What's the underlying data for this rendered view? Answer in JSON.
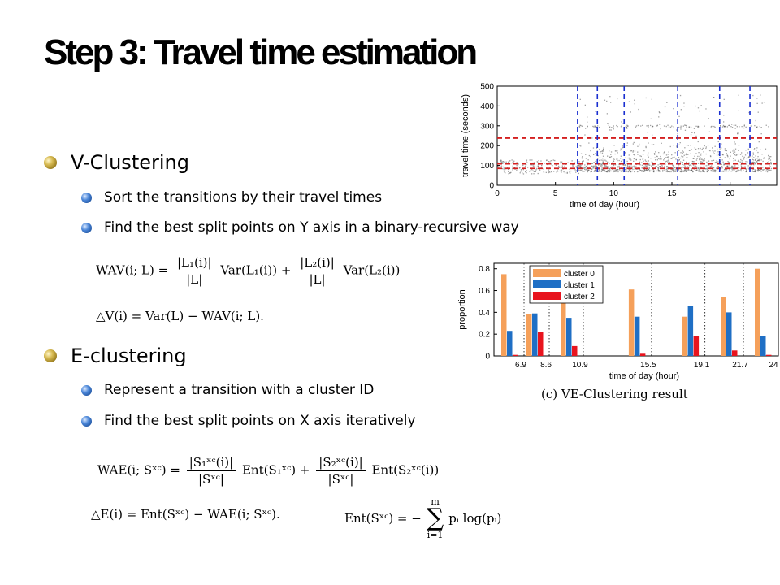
{
  "slide": {
    "title": "Step 3: Travel time estimation",
    "v_clustering": {
      "heading": "V-Clustering",
      "items": [
        "Sort the transitions by their travel times",
        "Find the best split points  on Y axis in a binary-recursive way"
      ]
    },
    "e_clustering": {
      "heading": "E-clustering",
      "items": [
        "Represent a transition with a cluster ID",
        "Find the best split points on X axis iteratively"
      ]
    },
    "formulas": {
      "wav_lhs": "WAV(i; L) =",
      "wav_frac1_num": "|L₁(i)|",
      "wav_frac1_den": "|L|",
      "wav_term1": "Var(L₁(i)) +",
      "wav_frac2_num": "|L₂(i)|",
      "wav_frac2_den": "|L|",
      "wav_term2": "Var(L₂(i))",
      "delta_v": "△V(i) = Var(L) − WAV(i; L).",
      "wae_lhs": "WAE(i; Sˣᶜ) =",
      "wae_frac1_num": "|S₁ˣᶜ(i)|",
      "wae_frac1_den": "|Sˣᶜ|",
      "wae_term1": "Ent(S₁ˣᶜ) +",
      "wae_frac2_num": "|S₂ˣᶜ(i)|",
      "wae_frac2_den": "|Sˣᶜ|",
      "wae_term2": "Ent(S₂ˣᶜ(i))",
      "delta_e": "△E(i) = Ent(Sˣᶜ) − WAE(i; Sˣᶜ).",
      "ent_lhs": "Ent(Sˣᶜ) = −",
      "sum_sigma": "∑",
      "sum_upper": "m",
      "sum_lower": "i=1",
      "ent_rhs": "pᵢ log(pᵢ)"
    },
    "caption": "(c) VE-Clustering result",
    "colors": {
      "cluster0": "#f5a05a",
      "cluster1": "#1f6fc5",
      "cluster2": "#e8141e",
      "bullet_gold": "#c9a43a",
      "bullet_blue": "#3a78c8",
      "split_red": "#d42020",
      "split_blue": "#1a2fd0"
    }
  },
  "chart_data": [
    {
      "type": "scatter",
      "title": "",
      "xlabel": "time of day (hour)",
      "ylabel": "travel time (seconds)",
      "xlim": [
        0,
        24
      ],
      "ylim": [
        0,
        500
      ],
      "x_ticks": [
        "0",
        "5",
        "10",
        "15",
        "20"
      ],
      "y_ticks": [
        "0",
        "100",
        "200",
        "300",
        "400",
        "500"
      ],
      "red_dashed_y": [
        85,
        108,
        238
      ],
      "blue_dashed_x": [
        6.9,
        8.6,
        10.9,
        15.5,
        19.1,
        21.7
      ],
      "grid": false
    },
    {
      "type": "bar",
      "title": "",
      "xlabel": "time of day (hour)",
      "ylabel": "proportion",
      "ylim": [
        0,
        0.85
      ],
      "y_ticks": [
        "0",
        "0.2",
        "0.4",
        "0.6",
        "0.8"
      ],
      "x_tick_labels": [
        "6.9",
        "8.6",
        "10.9",
        "15.5",
        "19.1",
        "21.7",
        "24"
      ],
      "legend_position": "top-left",
      "series": [
        {
          "name": "cluster 0",
          "values": [
            0.75,
            0.38,
            0.57,
            0.61,
            0.36,
            0.54,
            0.8
          ]
        },
        {
          "name": "cluster 1",
          "values": [
            0.23,
            0.39,
            0.35,
            0.36,
            0.46,
            0.4,
            0.18
          ]
        },
        {
          "name": "cluster 2",
          "values": [
            0.01,
            0.22,
            0.09,
            0.02,
            0.18,
            0.05,
            0.01
          ]
        }
      ]
    }
  ]
}
